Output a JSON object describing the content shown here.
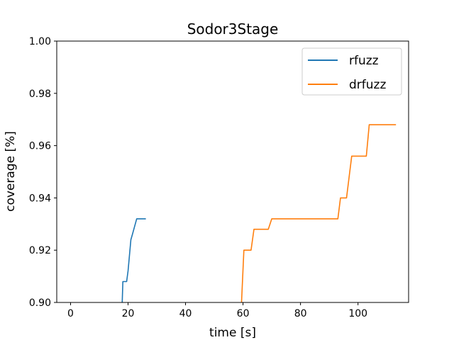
{
  "chart_data": {
    "type": "line",
    "title": "Sodor3Stage",
    "xlabel": "time [s]",
    "ylabel": "coverage [%]",
    "xlim": [
      -4.8,
      117.6
    ],
    "ylim": [
      0.9,
      1.0
    ],
    "xticks": [
      0,
      20,
      40,
      60,
      80,
      100
    ],
    "yticks": [
      0.9,
      0.92,
      0.94,
      0.96,
      0.98,
      1.0
    ],
    "grid": false,
    "legend_position": "top-right",
    "series": [
      {
        "name": "rfuzz",
        "color": "#1f77b4",
        "x": [
          17.8,
          18.2,
          19.5,
          20.0,
          21.0,
          21.5,
          23.0,
          23.5,
          26.2
        ],
        "y": [
          0.894,
          0.908,
          0.908,
          0.912,
          0.924,
          0.926,
          0.932,
          0.932,
          0.932
        ]
      },
      {
        "name": "drfuzz",
        "color": "#ff7f0e",
        "x": [
          59.3,
          60.3,
          62.8,
          63.8,
          68.8,
          70.0,
          93.0,
          93.9,
          96.0,
          97.8,
          102.9,
          103.9,
          113.2
        ],
        "y": [
          0.896,
          0.92,
          0.92,
          0.928,
          0.928,
          0.932,
          0.932,
          0.94,
          0.94,
          0.956,
          0.956,
          0.968,
          0.968
        ]
      }
    ]
  }
}
